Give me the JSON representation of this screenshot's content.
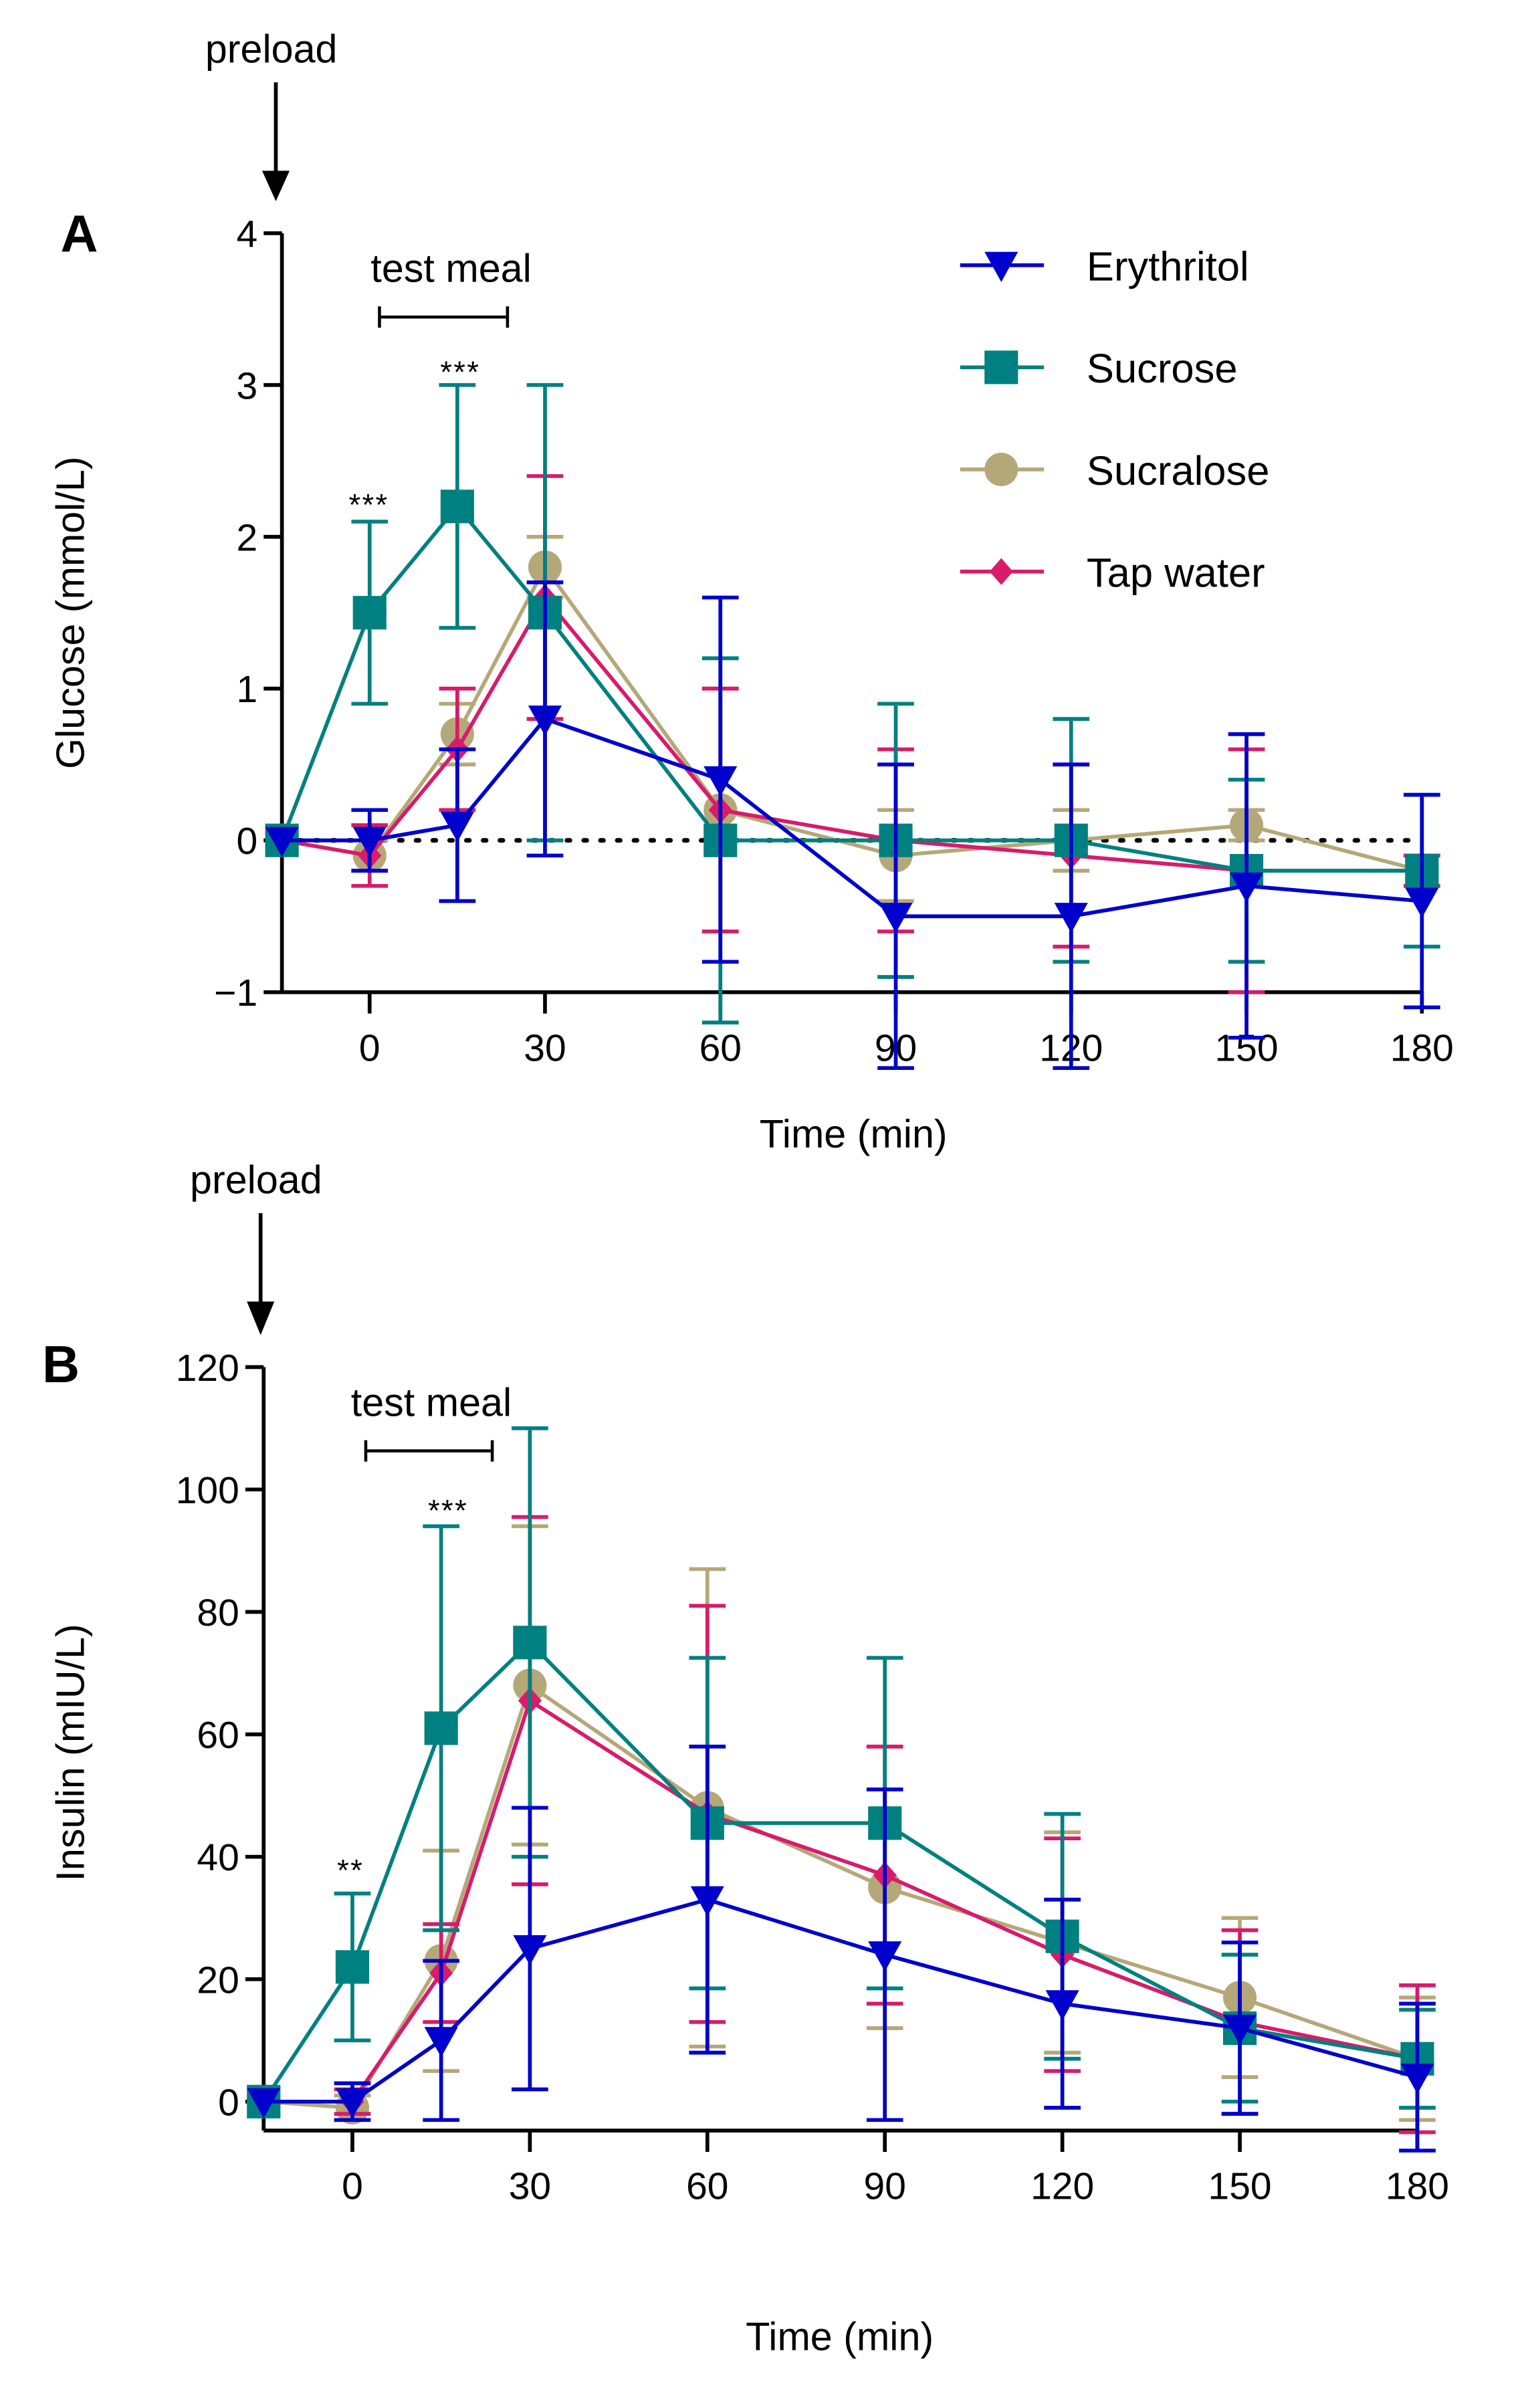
{
  "legend": [
    "Erythritol",
    "Sucrose",
    "Sucralose",
    "Tap water"
  ],
  "colors": {
    "Erythritol": "#0000CC",
    "Sucrose": "#008080",
    "Sucralose": "#B5A878",
    "Tap water": "#D81B6A"
  },
  "markers": {
    "Erythritol": "triangle-down",
    "Sucrose": "square",
    "Sucralose": "circle",
    "Tap water": "diamond"
  },
  "chart_data": [
    {
      "panel_label": "A",
      "type": "line",
      "ylabel": "Glucose (mmol/L)",
      "xlabel": "Time (min)",
      "x": [
        -15,
        0,
        15,
        30,
        60,
        90,
        120,
        150,
        180
      ],
      "xticks": [
        "0",
        "30",
        "60",
        "90",
        "120",
        "150",
        "180"
      ],
      "yticks": [
        "−1",
        "0",
        "1",
        "2",
        "3",
        "4"
      ],
      "ylim": [
        -1,
        4
      ],
      "xlim": [
        -15,
        180
      ],
      "reference_line_y": 0,
      "annotations": {
        "preload": "preload",
        "test_meal": "test meal",
        "sig_0": "***",
        "sig_15": "***"
      },
      "legend_position": "top-right",
      "series": [
        {
          "name": "Erythritol",
          "values": [
            0,
            0,
            0.1,
            0.8,
            0.4,
            -0.5,
            -0.5,
            -0.3,
            -0.4
          ],
          "error": [
            0,
            0.2,
            0.5,
            0.9,
            1.2,
            1.0,
            1.0,
            1.0,
            0.7
          ]
        },
        {
          "name": "Sucrose",
          "values": [
            0,
            1.5,
            2.2,
            1.5,
            0,
            0,
            0,
            -0.2,
            -0.2
          ],
          "error": [
            0,
            0.6,
            0.8,
            1.5,
            1.2,
            0.9,
            0.8,
            0.6,
            0.5
          ]
        },
        {
          "name": "Sucralose",
          "values": [
            0,
            -0.1,
            0.7,
            1.8,
            0.2,
            -0.1,
            0,
            0.1,
            -0.2
          ],
          "error": [
            0,
            0.1,
            0.2,
            0.2,
            0.8,
            0.3,
            0.2,
            0.1,
            0.1
          ]
        },
        {
          "name": "Tap water",
          "values": [
            0,
            -0.1,
            0.6,
            1.6,
            0.2,
            0,
            -0.1,
            -0.2,
            -0.2
          ],
          "error": [
            0,
            0.2,
            0.4,
            0.8,
            0.8,
            0.6,
            0.6,
            0.8,
            0.1
          ]
        }
      ]
    },
    {
      "panel_label": "B",
      "type": "line",
      "ylabel": "Insulin (mIU/L)",
      "xlabel": "Time (min)",
      "x": [
        -15,
        0,
        15,
        30,
        60,
        90,
        120,
        150,
        180
      ],
      "xticks": [
        "0",
        "30",
        "60",
        "90",
        "120",
        "150",
        "180"
      ],
      "yticks": [
        "0",
        "20",
        "40",
        "60",
        "80",
        "100",
        "120"
      ],
      "ylim": [
        -5,
        120
      ],
      "xlim": [
        -15,
        180
      ],
      "annotations": {
        "preload": "preload",
        "test_meal": "test meal",
        "sig_0": "**",
        "sig_15": "***"
      },
      "series": [
        {
          "name": "Erythritol",
          "values": [
            0,
            0,
            10,
            25,
            33,
            24,
            16,
            12,
            4
          ],
          "error": [
            0,
            3,
            13,
            23,
            25,
            27,
            17,
            14,
            12
          ]
        },
        {
          "name": "Sucrose",
          "values": [
            0,
            22,
            61,
            75,
            45.5,
            45.5,
            27,
            12,
            7
          ],
          "error": [
            0,
            12,
            33,
            35,
            27,
            27,
            20,
            12,
            8
          ]
        },
        {
          "name": "Sucralose",
          "values": [
            0,
            -1,
            23,
            68,
            48,
            35,
            26,
            17,
            7
          ],
          "error": [
            0,
            2,
            18,
            26,
            39,
            23,
            18,
            13,
            10
          ]
        },
        {
          "name": "Tap water",
          "values": [
            0,
            0,
            21,
            65.5,
            47,
            37,
            24,
            13,
            7
          ],
          "error": [
            0,
            2,
            8,
            30,
            34,
            21,
            19,
            15,
            12
          ]
        }
      ]
    }
  ]
}
